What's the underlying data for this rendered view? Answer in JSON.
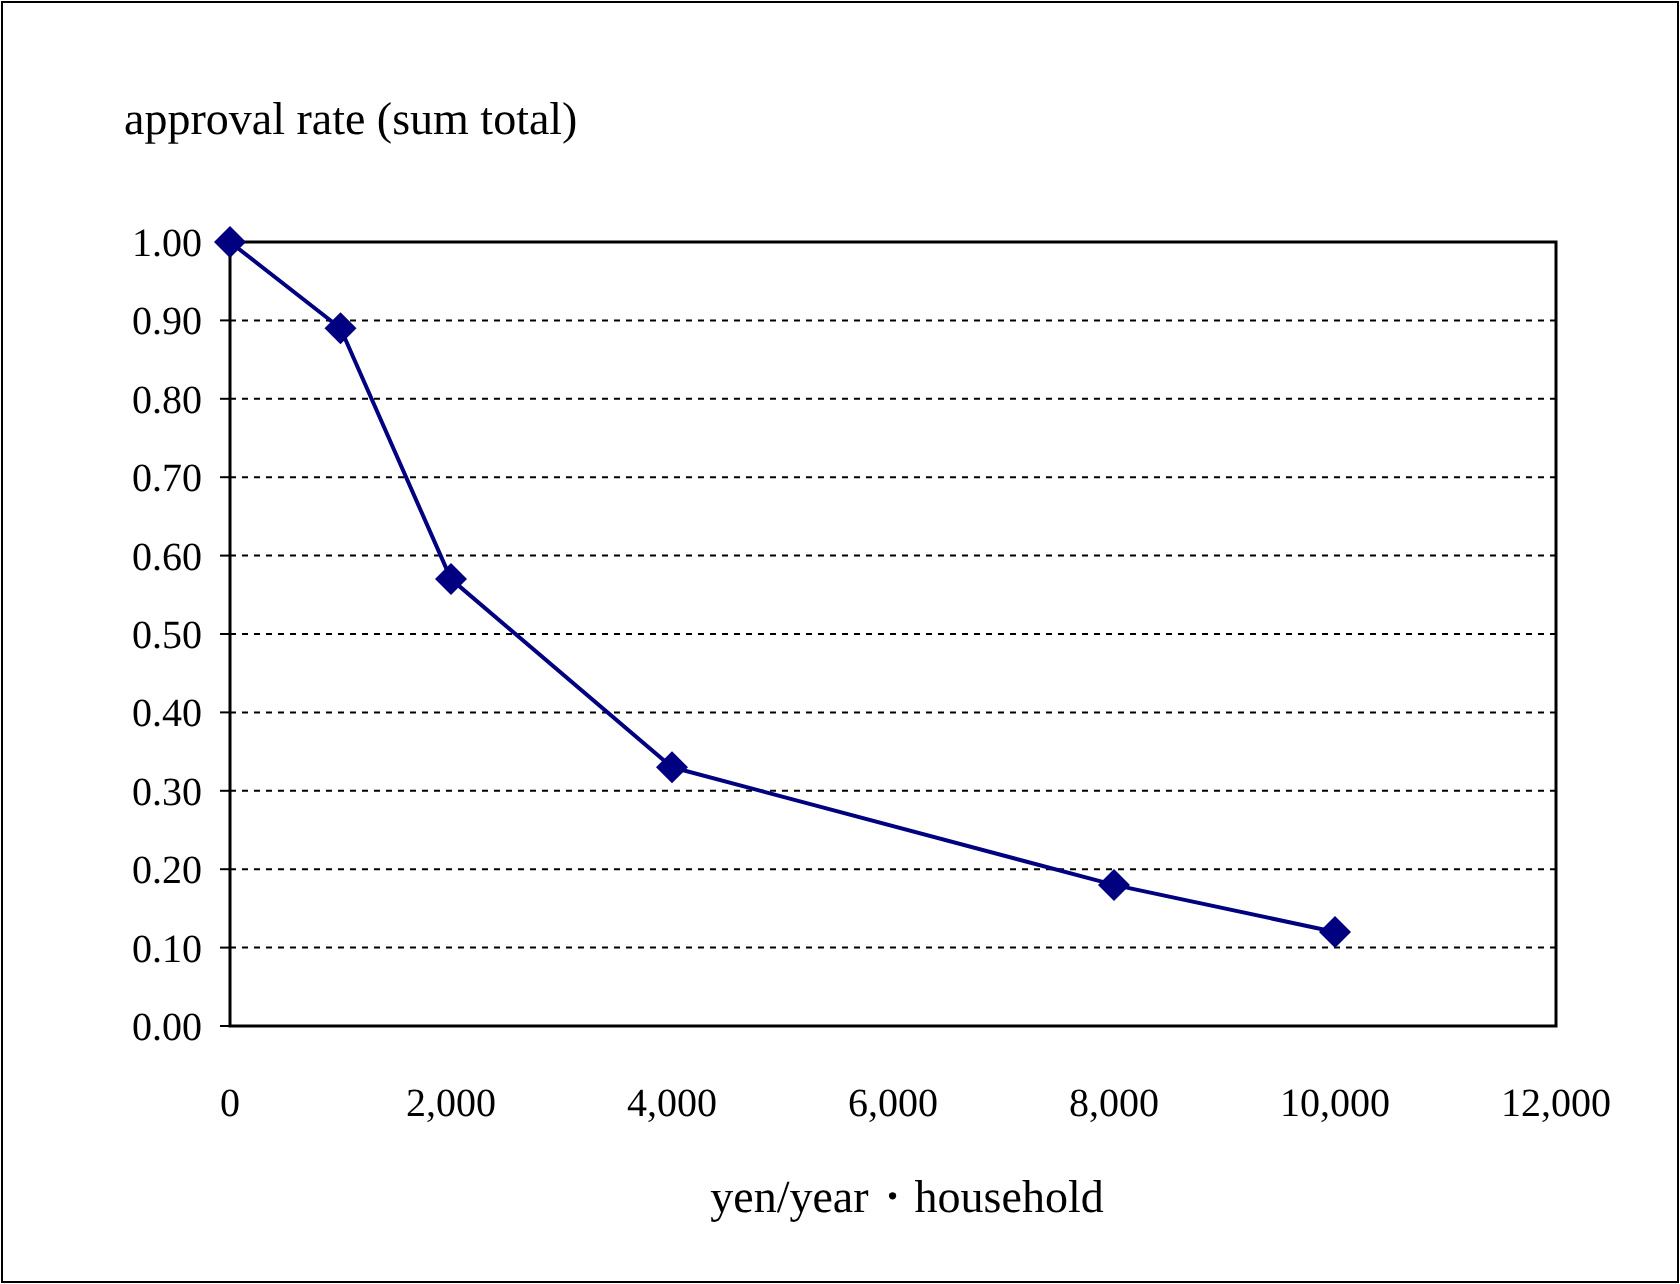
{
  "chart_data": {
    "type": "line",
    "ylabel": "approval rate (sum total)",
    "xlabel": "yen/year・household",
    "x": [
      0,
      1000,
      2000,
      4000,
      8000,
      10000
    ],
    "series": [
      {
        "color": "#000080",
        "values": [
          1.0,
          0.89,
          0.57,
          0.33,
          0.18,
          0.12
        ]
      }
    ],
    "xlim": [
      0,
      12000
    ],
    "xticks": [
      {
        "value": 0,
        "label": "0"
      },
      {
        "value": 2000,
        "label": "2,000"
      },
      {
        "value": 4000,
        "label": "4,000"
      },
      {
        "value": 6000,
        "label": "6,000"
      },
      {
        "value": 8000,
        "label": "8,000"
      },
      {
        "value": 10000,
        "label": "10,000"
      },
      {
        "value": 12000,
        "label": "12,000"
      }
    ],
    "ylim": [
      0,
      1
    ],
    "yticks": [
      {
        "value": 0,
        "label": "0.00"
      },
      {
        "value": 0.1,
        "label": "0.10"
      },
      {
        "value": 0.2,
        "label": "0.20"
      },
      {
        "value": 0.3,
        "label": "0.30"
      },
      {
        "value": 0.4,
        "label": "0.40"
      },
      {
        "value": 0.5,
        "label": "0.50"
      },
      {
        "value": 0.6,
        "label": "0.60"
      },
      {
        "value": 0.7,
        "label": "0.70"
      },
      {
        "value": 0.8,
        "label": "0.80"
      },
      {
        "value": 0.9,
        "label": "0.90"
      },
      {
        "value": 1,
        "label": "1.00"
      }
    ],
    "grid": "y",
    "marker": "diamond",
    "line_style": "solid"
  }
}
